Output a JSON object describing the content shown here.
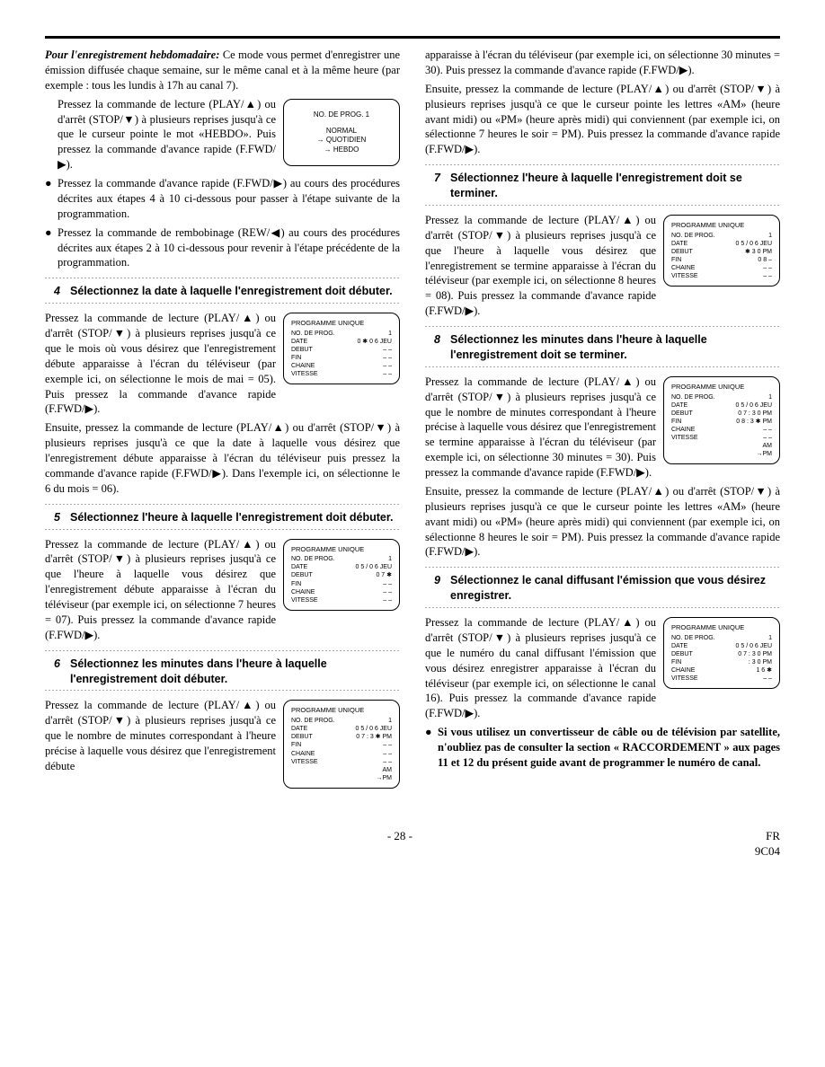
{
  "left": {
    "intro_title": "Pour l'enregistrement hebdomadaire:",
    "intro_body": " Ce mode vous permet d'enregistrer une émission diffusée chaque semaine, sur le même canal et à la même heure (par exemple : tous les lundis à 17h au canal 7).",
    "intro_p1": "Pressez la commande de lecture (PLAY/▲) ou d'arrêt (STOP/▼) à plusieurs reprises jusqu'à ce que le curseur pointe le mot «HEBDO». Puis pressez la commande d'avance rapide (F.FWD/▶).",
    "intro_box": {
      "l1": "NO. DE PROG.  1",
      "l2": "NORMAL",
      "l3": "→ QUOTIDIEN",
      "l4": "→ HEBDO"
    },
    "bullet1": "Pressez la commande d'avance rapide (F.FWD/▶) au cours des procédures décrites aux étapes 4 à 10 ci-dessous pour passer à l'étape suivante de la programmation.",
    "bullet2": "Pressez la commande de rembobinage (REW/◀) au cours des procédures décrites aux étapes 2 à 10 ci-dessous pour revenir à l'étape précédente de la programmation.",
    "step4": {
      "num": "4",
      "title": "Sélectionnez la date à laquelle l'enregistrement doit débuter.",
      "box_title": "PROGRAMME UNIQUE",
      "box_rows": [
        [
          "NO. DE PROG.",
          "1"
        ],
        [
          "DATE",
          "0 ✱ 0 6  JEU"
        ],
        [
          "DEBUT",
          "– –"
        ],
        [
          "FIN",
          "– –"
        ],
        [
          "CHAINE",
          "– –"
        ],
        [
          "VITESSE",
          "– –"
        ]
      ],
      "body": "Pressez la commande de lecture (PLAY/▲) ou d'arrêt (STOP/▼) à plusieurs reprises jusqu'à ce que le mois où  vous désirez que l'enregistrement débute apparaisse à l'écran du téléviseur (par exemple ici, on sélectionne le mois de mai = 05). Puis pressez la commande d'avance rapide (F.FWD/▶).",
      "body2": "Ensuite, pressez la commande de lecture (PLAY/▲) ou d'arrêt (STOP/▼) à plusieurs reprises jusqu'à ce que la date à laquelle vous désirez que l'enregistrement débute apparaisse à l'écran du téléviseur puis pressez la commande d'avance rapide (F.FWD/▶). Dans l'exemple ici, on sélectionne le 6 du mois = 06)."
    },
    "step5": {
      "num": "5",
      "title": "Sélectionnez l'heure à laquelle l'enregistrement doit débuter.",
      "box_title": "PROGRAMME UNIQUE",
      "box_rows": [
        [
          "NO. DE PROG.",
          "1"
        ],
        [
          "DATE",
          "0 5 / 0 6  JEU"
        ],
        [
          "DEBUT",
          "0 7 ✱"
        ],
        [
          "FIN",
          "– –"
        ],
        [
          "CHAINE",
          "– –"
        ],
        [
          "VITESSE",
          "– –"
        ]
      ],
      "body": "Pressez la commande de lecture (PLAY/▲) ou d'arrêt (STOP/▼) à plusieurs reprises jusqu'à ce que l'heure à laquelle vous désirez que l'enregistrement débute apparaisse à l'écran du téléviseur (par exemple ici, on sélectionne 7 heures = 07). Puis pressez la commande d'avance rapide (F.FWD/▶)."
    },
    "step6": {
      "num": "6",
      "title": "Sélectionnez les minutes dans l'heure à laquelle l'enregistrement doit débuter.",
      "box_title": "PROGRAMME UNIQUE",
      "box_rows": [
        [
          "NO. DE PROG.",
          "1"
        ],
        [
          "DATE",
          "0 5 / 0 6  JEU"
        ],
        [
          "DEBUT",
          "0 7 : 3 ✱ PM"
        ],
        [
          "FIN",
          "– –"
        ],
        [
          "CHAINE",
          "– –"
        ],
        [
          "VITESSE",
          "– –"
        ]
      ],
      "box_foot": "AM\n→PM",
      "body": "Pressez la commande de lecture (PLAY/▲) ou d'arrêt (STOP/▼) à plusieurs reprises jusqu'à ce que le nombre de minutes correspondant à l'heure précise à laquelle vous désirez que l'enregistrement débute"
    }
  },
  "right": {
    "cont1": "apparaisse à l'écran du téléviseur (par exemple ici, on sélectionne 30 minutes = 30). Puis pressez la commande d'avance rapide (F.FWD/▶).",
    "cont2": "Ensuite, pressez la commande de lecture (PLAY/▲) ou d'arrêt (STOP/▼) à plusieurs reprises jusqu'à ce que le curseur pointe les lettres «AM» (heure avant midi) ou «PM» (heure après midi) qui conviennent (par exemple ici, on sélectionne 7 heures le soir = PM). Puis pressez la commande d'avance rapide (F.FWD/▶).",
    "step7": {
      "num": "7",
      "title": "Sélectionnez l'heure à laquelle l'enregistrement doit se terminer.",
      "box_title": "PROGRAMME UNIQUE",
      "box_rows": [
        [
          "NO. DE PROG.",
          "1"
        ],
        [
          "DATE",
          "0 5 / 0 6  JEU"
        ],
        [
          "DEBUT",
          "✱ 3 0  PM"
        ],
        [
          "FIN",
          "0 8 –"
        ],
        [
          "CHAINE",
          "– –"
        ],
        [
          "VITESSE",
          "– –"
        ]
      ],
      "body": "Pressez la commande de lecture (PLAY/▲) ou d'arrêt (STOP/▼) à plusieurs reprises jusqu'à ce que l'heure à laquelle vous désirez que l'enregistrement se termine apparaisse à l'écran du téléviseur (par exemple ici, on sélectionne 8 heures = 08). Puis pressez la commande d'avance rapide (F.FWD/▶)."
    },
    "step8": {
      "num": "8",
      "title": "Sélectionnez les minutes dans l'heure à laquelle l'enregistrement doit se terminer.",
      "box_title": "PROGRAMME UNIQUE",
      "box_rows": [
        [
          "NO. DE PROG.",
          "1"
        ],
        [
          "DATE",
          "0 5 / 0 6  JEU"
        ],
        [
          "DEBUT",
          "0 7 : 3 0  PM"
        ],
        [
          "FIN",
          "0 8 : 3 ✱ PM"
        ],
        [
          "CHAINE",
          "– –"
        ],
        [
          "VITESSE",
          "– –"
        ]
      ],
      "box_foot": "AM\n→PM",
      "body": "Pressez la commande de lecture (PLAY/▲) ou d'arrêt (STOP/▼) à plusieurs reprises jusqu'à ce que le nombre de minutes correspondant à l'heure précise à laquelle vous désirez que l'enregistrement se termine apparaisse à l'écran du téléviseur (par exemple ici, on sélectionne 30 minutes = 30). Puis pressez la commande d'avance rapide (F.FWD/▶).",
      "body2": "Ensuite, pressez la commande de lecture (PLAY/▲) ou d'arrêt (STOP/▼) à plusieurs reprises jusqu'à ce que le curseur pointe les lettres «AM» (heure avant midi) ou «PM» (heure après midi) qui conviennent (par exemple ici, on sélectionne 8 heures le soir = PM). Puis pressez la commande d'avance rapide (F.FWD/▶)."
    },
    "step9": {
      "num": "9",
      "title": "Sélectionnez le canal diffusant l'émission que vous désirez enregistrer.",
      "box_title": "PROGRAMME UNIQUE",
      "box_rows": [
        [
          "NO. DE PROG.",
          "1"
        ],
        [
          "DATE",
          "0 5 / 0 6  JEU"
        ],
        [
          "DEBUT",
          "0 7 : 3 0  PM"
        ],
        [
          "FIN",
          "  : 3 0  PM"
        ],
        [
          "CHAINE",
          "1 6 ✱"
        ],
        [
          "VITESSE",
          "– –"
        ]
      ],
      "body": "Pressez la commande de lecture (PLAY/▲) ou d'arrêt (STOP/▼) à plusieurs reprises jusqu'à ce que le numéro du canal diffusant l'émission que vous désirez enregistrer apparaisse à l'écran du téléviseur (par exemple ici, on sélectionne le canal 16). Puis pressez la commande d'avance rapide (F.FWD/▶).",
      "bullet": "Si vous utilisez un convertisseur de câble ou de télévision par satellite, n'oubliez pas de consulter la section « RACCORDEMENT » aux pages 11 et 12 du présent guide avant de programmer le numéro de canal."
    }
  },
  "footer": {
    "page": "- 28 -",
    "lang": "FR",
    "code": "9C04"
  }
}
